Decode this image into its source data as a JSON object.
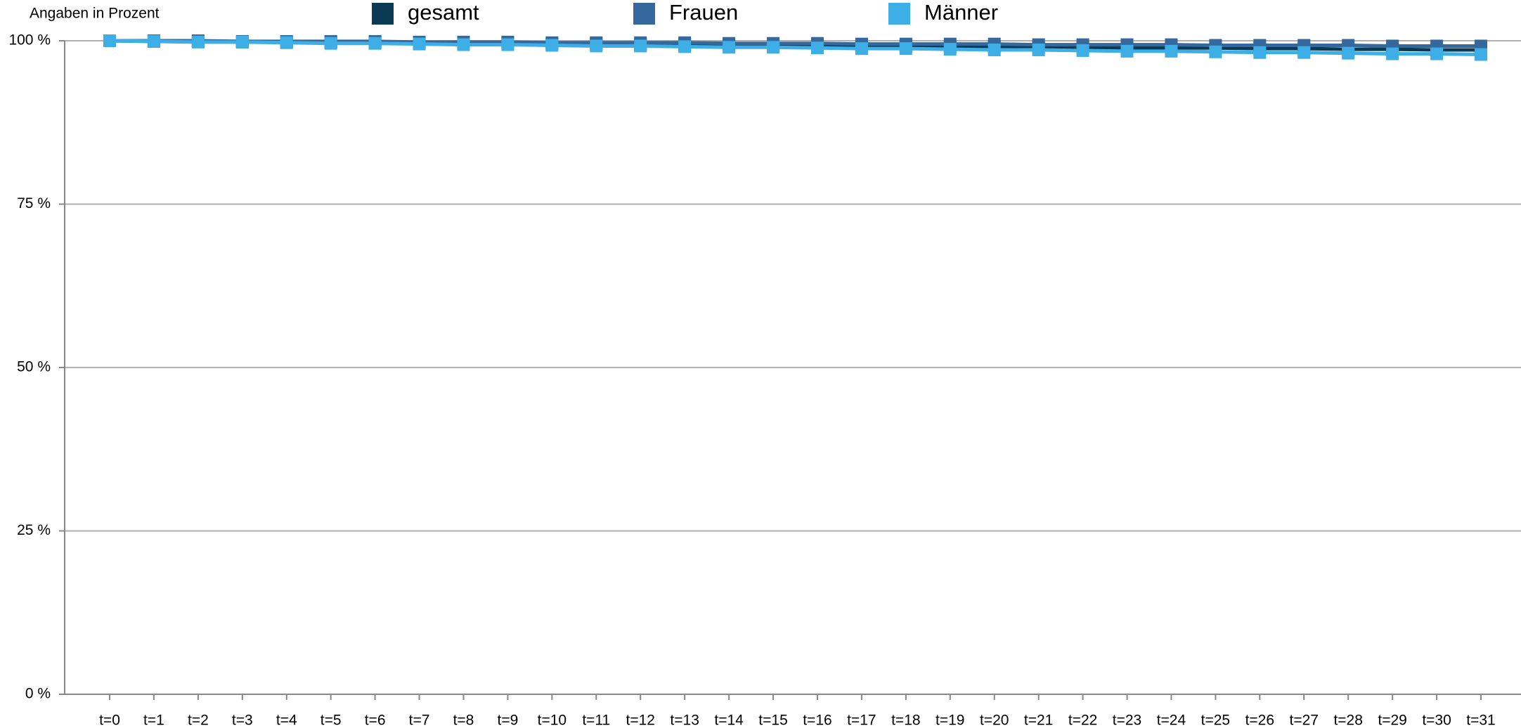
{
  "chart_data": {
    "type": "line",
    "title": "Angaben in Prozent",
    "categories": [
      "t=0",
      "t=1",
      "t=2",
      "t=3",
      "t=4",
      "t=5",
      "t=6",
      "t=7",
      "t=8",
      "t=9",
      "t=10",
      "t=11",
      "t=12",
      "t=13",
      "t=14",
      "t=15",
      "t=16",
      "t=17",
      "t=18",
      "t=19",
      "t=20",
      "t=21",
      "t=22",
      "t=23",
      "t=24",
      "t=25",
      "t=26",
      "t=27",
      "t=28",
      "t=29",
      "t=30",
      "t=31"
    ],
    "series": [
      {
        "name": "gesamt",
        "color": "#0b3a55",
        "values": [
          100,
          99.9,
          99.9,
          99.8,
          99.8,
          99.8,
          99.7,
          99.7,
          99.6,
          99.6,
          99.5,
          99.5,
          99.4,
          99.4,
          99.4,
          99.3,
          99.3,
          99.2,
          99.2,
          99.1,
          99.1,
          99.0,
          99.0,
          98.9,
          98.9,
          98.9,
          98.8,
          98.8,
          98.7,
          98.7,
          98.6,
          98.6
        ]
      },
      {
        "name": "Frauen",
        "color": "#35689c",
        "values": [
          100,
          100,
          100,
          99.9,
          99.9,
          99.9,
          99.9,
          99.8,
          99.8,
          99.8,
          99.7,
          99.7,
          99.7,
          99.7,
          99.6,
          99.6,
          99.6,
          99.5,
          99.5,
          99.5,
          99.5,
          99.4,
          99.4,
          99.4,
          99.4,
          99.3,
          99.3,
          99.3,
          99.3,
          99.2,
          99.2,
          99.2
        ]
      },
      {
        "name": "Männer",
        "color": "#3eafe6",
        "values": [
          100,
          99.9,
          99.8,
          99.8,
          99.7,
          99.6,
          99.6,
          99.5,
          99.4,
          99.4,
          99.3,
          99.2,
          99.2,
          99.1,
          99.0,
          99.0,
          98.9,
          98.8,
          98.8,
          98.7,
          98.6,
          98.6,
          98.5,
          98.4,
          98.4,
          98.3,
          98.2,
          98.2,
          98.1,
          98.0,
          98.0,
          97.9
        ]
      }
    ],
    "ylim": [
      0,
      100
    ],
    "yticks": [
      {
        "value": 0,
        "label": "0 %"
      },
      {
        "value": 25,
        "label": "25 %"
      },
      {
        "value": 50,
        "label": "50 %"
      },
      {
        "value": 75,
        "label": "75 %"
      },
      {
        "value": 100,
        "label": "100 %"
      }
    ],
    "grid": true
  }
}
